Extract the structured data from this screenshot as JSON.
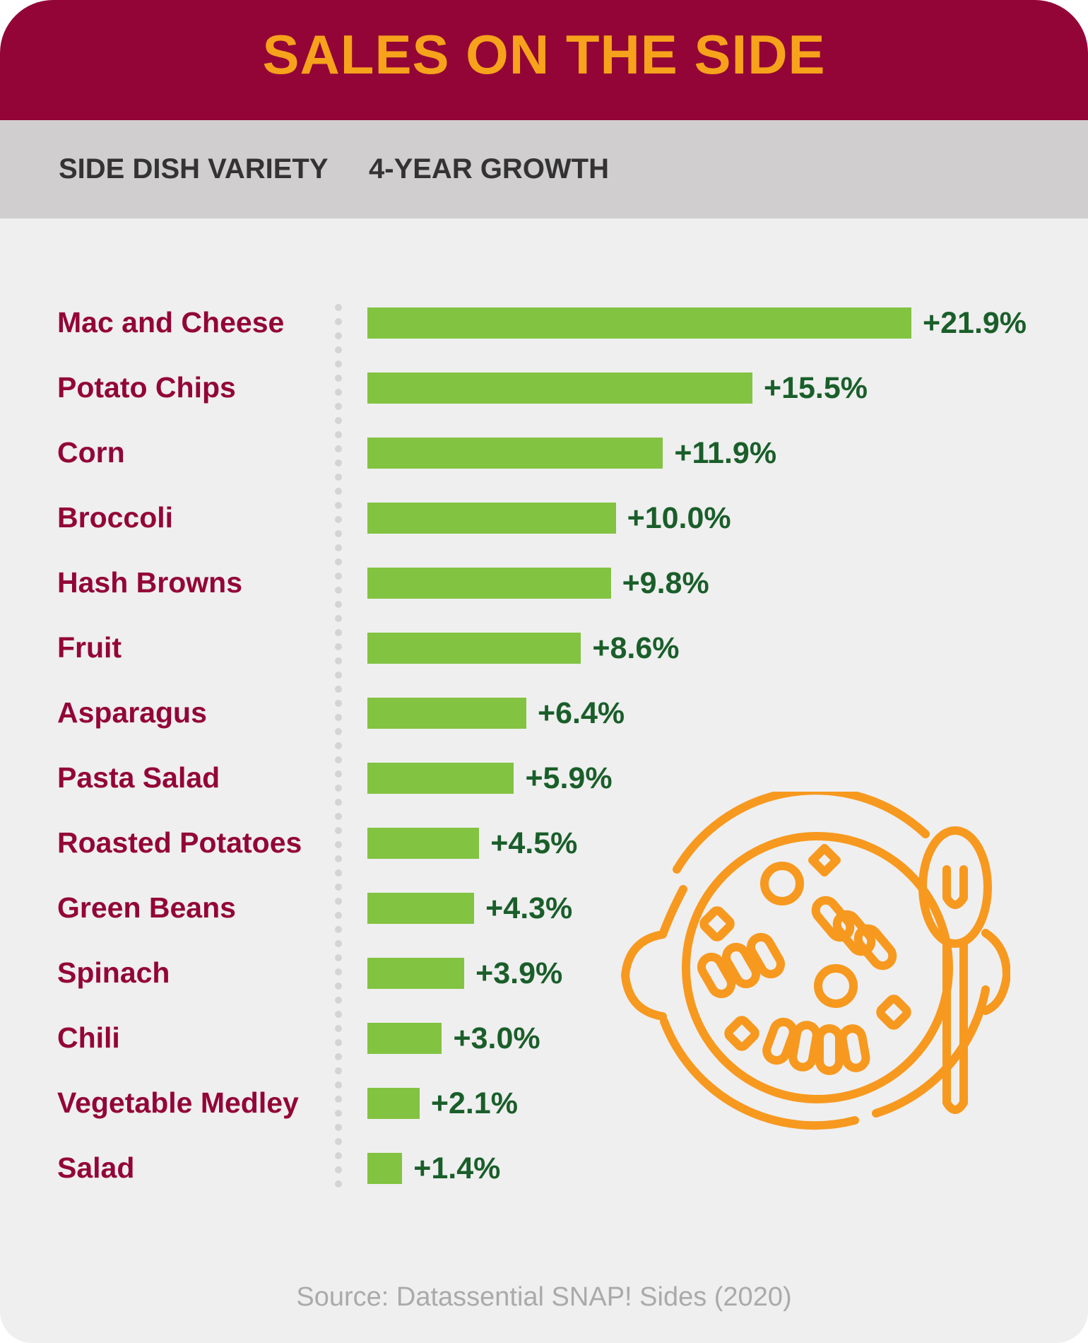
{
  "title": "SALES ON THE SIDE",
  "column_headers": {
    "variety": "SIDE DISH VARIETY",
    "growth": "4-YEAR GROWTH"
  },
  "source": "Source: Datassential SNAP! Sides (2020)",
  "colors": {
    "header": "#930537",
    "title": "#f7a21b",
    "bar": "#82c341",
    "label": "#930537",
    "value": "#1a5e2a",
    "icon": "#f7991f"
  },
  "icon": "bowl-with-spoon-icon",
  "chart_data": {
    "type": "bar",
    "orientation": "horizontal",
    "title": "SALES ON THE SIDE",
    "xlabel": "4-YEAR GROWTH",
    "ylabel": "SIDE DISH VARIETY",
    "unit": "%",
    "xlim": [
      0,
      21.9
    ],
    "grid": false,
    "categories": [
      "Mac and Cheese",
      "Potato Chips",
      "Corn",
      "Broccoli",
      "Hash Browns",
      "Fruit",
      "Asparagus",
      "Pasta Salad",
      "Roasted Potatoes",
      "Green Beans",
      "Spinach",
      "Chili",
      "Vegetable Medley",
      "Salad"
    ],
    "values": [
      21.9,
      15.5,
      11.9,
      10.0,
      9.8,
      8.6,
      6.4,
      5.9,
      4.5,
      4.3,
      3.9,
      3.0,
      2.1,
      1.4
    ],
    "labels": [
      "+21.9%",
      "+15.5%",
      "+11.9%",
      "+10.0%",
      "+9.8%",
      "+8.6%",
      "+6.4%",
      "+5.9%",
      "+4.5%",
      "+4.3%",
      "+3.9%",
      "+3.0%",
      "+2.1%",
      "+1.4%"
    ]
  }
}
